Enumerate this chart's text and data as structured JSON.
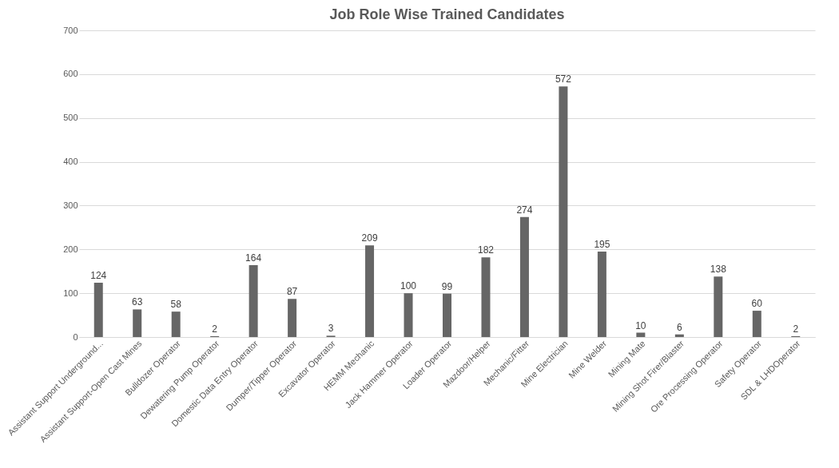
{
  "chart_data": {
    "type": "bar",
    "title": "Job Role Wise Trained Candidates",
    "categories": [
      "Assistant Support Underground...",
      "Assistant Support-Open Cast Mines",
      "Bulldozer Operator",
      "Dewatering Pump Operator",
      "Domestic Data Entry Operator",
      "Dumper/Tipper Operator",
      "Excavator Operator",
      "HEMM Mechanic",
      "Jack Hammer Operator",
      "Loader Operator",
      "Mazdoor/Helper",
      "Mechanic/Fitter",
      "Mine Electrician",
      "Mine Welder",
      "Mining Mate",
      "Mining Shot Firer/Blaster",
      "Ore Processing Operator",
      "Safety Operator",
      "SDL & LHDOperator"
    ],
    "values": [
      124,
      63,
      58,
      2,
      164,
      87,
      3,
      209,
      100,
      99,
      182,
      274,
      572,
      195,
      10,
      6,
      138,
      60,
      2
    ],
    "color": "#666666",
    "ylim": [
      0,
      700
    ],
    "yticks": [
      0,
      100,
      200,
      300,
      400,
      500,
      600,
      700
    ],
    "grid": "y",
    "data_labels": true
  }
}
